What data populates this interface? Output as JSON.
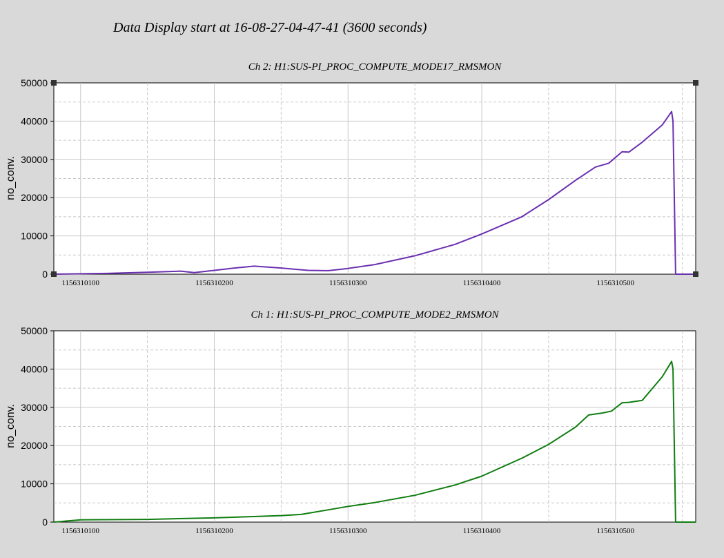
{
  "header": {
    "title": "Data Display start at 16-08-27-04-47-41 (3600 seconds)"
  },
  "colors": {
    "background": "#d9d9d9",
    "plot_background": "#ffffff",
    "grid": "#c8c8c8",
    "ch2_line": "#6a2fb0",
    "ch1_line": "#0f7d0f"
  },
  "chart_data": [
    {
      "type": "line",
      "title": "Ch 2: H1:SUS-PI_PROC_COMPUTE_MODE17_RMSMON",
      "ylabel": "no_conv.",
      "xlabel": "",
      "xlim": [
        1156310080,
        1156310560
      ],
      "ylim": [
        0,
        50000
      ],
      "xticks": [
        1156310100,
        1156310200,
        1156310300,
        1156310400,
        1156310500
      ],
      "xtick_labels": [
        "1156310100",
        "1156310200",
        "1156310300",
        "1156310400",
        "1156310500"
      ],
      "yticks": [
        0,
        10000,
        20000,
        30000,
        40000,
        50000
      ],
      "ytick_labels": [
        "0",
        "10000",
        "20000",
        "30000",
        "40000",
        "50000"
      ],
      "grid": true,
      "series": [
        {
          "color": "#6a2fb0",
          "x": [
            1156310080,
            1156310120,
            1156310150,
            1156310175,
            1156310185,
            1156310200,
            1156310215,
            1156310230,
            1156310250,
            1156310270,
            1156310285,
            1156310300,
            1156310320,
            1156310350,
            1156310380,
            1156310400,
            1156310430,
            1156310450,
            1156310470,
            1156310485,
            1156310495,
            1156310505,
            1156310510,
            1156310520,
            1156310535,
            1156310542,
            1156310543,
            1156310545,
            1156310555,
            1156310560
          ],
          "y": [
            0,
            200,
            500,
            800,
            400,
            1000,
            1600,
            2100,
            1600,
            1000,
            900,
            1500,
            2500,
            4800,
            7800,
            10500,
            15000,
            19500,
            24500,
            28000,
            29000,
            32000,
            31900,
            34500,
            39000,
            42500,
            40000,
            0,
            0,
            0
          ]
        }
      ]
    },
    {
      "type": "line",
      "title": "Ch 1: H1:SUS-PI_PROC_COMPUTE_MODE2_RMSMON",
      "ylabel": "no_conv.",
      "xlabel": "",
      "xlim": [
        1156310080,
        1156310560
      ],
      "ylim": [
        0,
        50000
      ],
      "xticks": [
        1156310100,
        1156310200,
        1156310300,
        1156310400,
        1156310500
      ],
      "xtick_labels": [
        "1156310100",
        "1156310200",
        "1156310300",
        "1156310400",
        "1156310500"
      ],
      "yticks": [
        0,
        10000,
        20000,
        30000,
        40000,
        50000
      ],
      "ytick_labels": [
        "0",
        "10000",
        "20000",
        "30000",
        "40000",
        "50000"
      ],
      "grid": true,
      "series": [
        {
          "color": "#0f7d0f",
          "x": [
            1156310080,
            1156310100,
            1156310150,
            1156310200,
            1156310250,
            1156310265,
            1156310285,
            1156310300,
            1156310320,
            1156310350,
            1156310380,
            1156310400,
            1156310430,
            1156310450,
            1156310470,
            1156310480,
            1156310490,
            1156310497,
            1156310505,
            1156310510,
            1156310520,
            1156310535,
            1156310542,
            1156310543,
            1156310545,
            1156310555,
            1156310560
          ],
          "y": [
            0,
            600,
            700,
            1100,
            1700,
            2000,
            3200,
            4100,
            5100,
            7000,
            9700,
            12000,
            16700,
            20300,
            24800,
            28000,
            28500,
            29000,
            31200,
            31300,
            31800,
            38000,
            42000,
            40000,
            0,
            0,
            0
          ]
        }
      ]
    }
  ]
}
